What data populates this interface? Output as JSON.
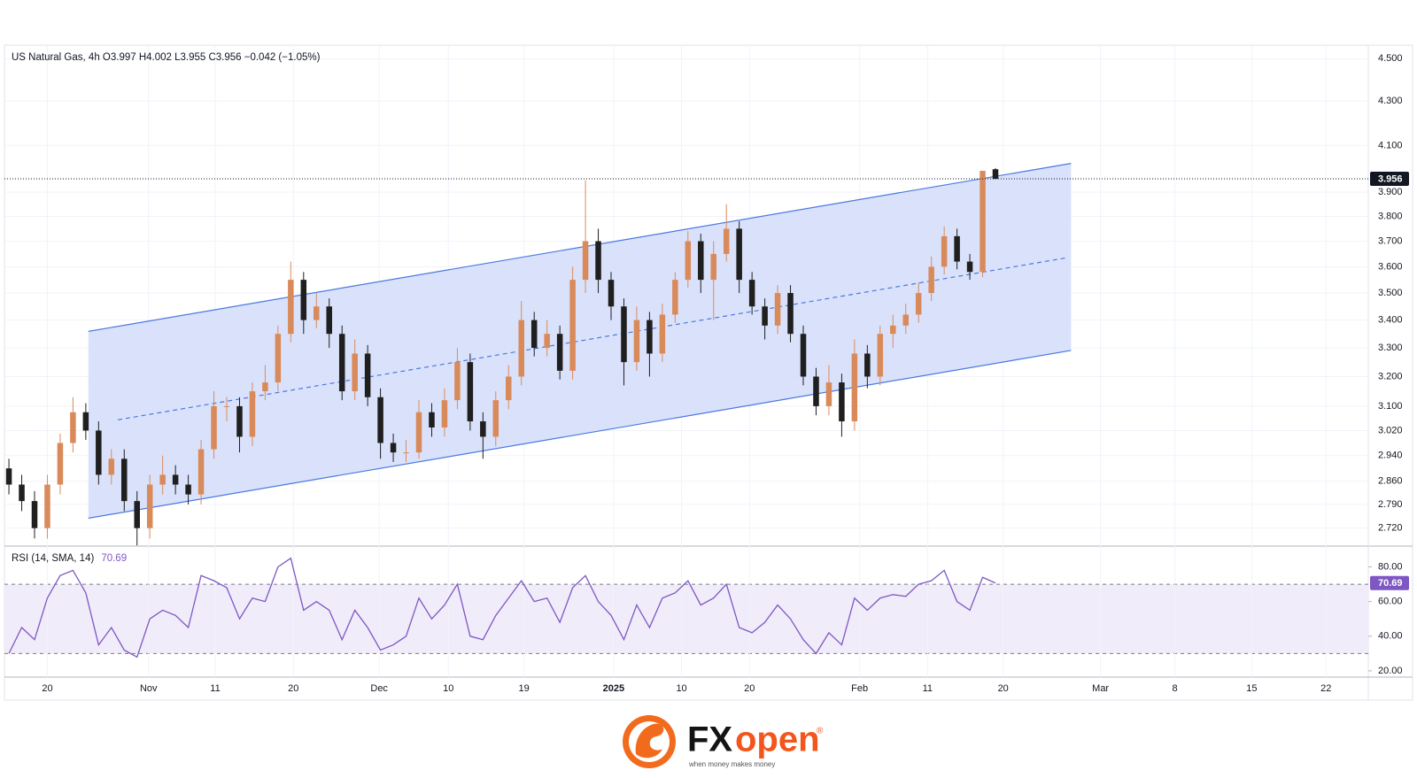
{
  "chart_data": [
    {
      "type": "candlestick",
      "title": "US Natural Gas, 4h  O3.997  H4.002  L3.955  C3.956  −0.042 (−1.05%)",
      "log_scale": true,
      "grid": true,
      "up_color": "#d98a5b",
      "down_color": "#1f1f1f",
      "xlim": [
        -0.35,
        106.1
      ],
      "ylim": [
        2.668,
        4.566
      ],
      "yticks": [
        {
          "value": 2.72,
          "label": "2.720"
        },
        {
          "value": 2.79,
          "label": "2.790"
        },
        {
          "value": 2.86,
          "label": "2.860"
        },
        {
          "value": 2.94,
          "label": "2.940"
        },
        {
          "value": 3.02,
          "label": "3.020"
        },
        {
          "value": 3.1,
          "label": "3.100"
        },
        {
          "value": 3.2,
          "label": "3.200"
        },
        {
          "value": 3.3,
          "label": "3.300"
        },
        {
          "value": 3.4,
          "label": "3.400"
        },
        {
          "value": 3.5,
          "label": "3.500"
        },
        {
          "value": 3.6,
          "label": "3.600"
        },
        {
          "value": 3.7,
          "label": "3.700"
        },
        {
          "value": 3.8,
          "label": "3.800"
        },
        {
          "value": 3.9,
          "label": "3.900"
        },
        {
          "value": 4.1,
          "label": "4.100"
        },
        {
          "value": 4.3,
          "label": "4.300"
        },
        {
          "value": 4.5,
          "label": "4.500"
        }
      ],
      "last_price": 3.956,
      "x": [
        0,
        1,
        2,
        3,
        4,
        5,
        6,
        7,
        8,
        9,
        10,
        11,
        12,
        13,
        14,
        15,
        16,
        17,
        18,
        19,
        20,
        21,
        22,
        23,
        24,
        25,
        26,
        27,
        28,
        29,
        30,
        31,
        32,
        33,
        34,
        35,
        36,
        37,
        38,
        39,
        40,
        41,
        42,
        43,
        44,
        45,
        46,
        47,
        48,
        49,
        50,
        51,
        52,
        53,
        54,
        55,
        56,
        57,
        58,
        59,
        60,
        61,
        62,
        63,
        64,
        65,
        66,
        67,
        68,
        69,
        70,
        71,
        72,
        73,
        74,
        75,
        76,
        77
      ],
      "open": [
        2.9,
        2.85,
        2.8,
        2.72,
        2.85,
        2.98,
        3.08,
        3.02,
        2.88,
        2.93,
        2.8,
        2.72,
        2.85,
        2.88,
        2.85,
        2.82,
        2.96,
        3.1,
        3.1,
        3.0,
        3.15,
        3.18,
        3.35,
        3.55,
        3.4,
        3.45,
        3.35,
        3.15,
        3.28,
        3.13,
        2.98,
        2.95,
        2.95,
        3.08,
        3.03,
        3.12,
        3.25,
        3.05,
        3.0,
        3.12,
        3.2,
        3.4,
        3.3,
        3.35,
        3.22,
        3.55,
        3.7,
        3.55,
        3.45,
        3.25,
        3.4,
        3.28,
        3.42,
        3.55,
        3.7,
        3.55,
        3.65,
        3.75,
        3.55,
        3.45,
        3.38,
        3.5,
        3.35,
        3.2,
        3.1,
        3.18,
        3.05,
        3.28,
        3.2,
        3.35,
        3.38,
        3.42,
        3.5,
        3.6,
        3.72,
        3.62,
        3.58,
        3.997
      ],
      "high": [
        2.93,
        2.88,
        2.83,
        2.88,
        3.01,
        3.13,
        3.11,
        3.05,
        2.96,
        2.96,
        2.83,
        2.88,
        2.94,
        2.91,
        2.88,
        2.99,
        3.15,
        3.13,
        3.13,
        3.18,
        3.24,
        3.38,
        3.62,
        3.58,
        3.5,
        3.48,
        3.38,
        3.33,
        3.31,
        3.16,
        3.01,
        2.99,
        3.12,
        3.11,
        3.16,
        3.3,
        3.28,
        3.08,
        3.15,
        3.24,
        3.47,
        3.43,
        3.4,
        3.38,
        3.6,
        3.95,
        3.75,
        3.58,
        3.48,
        3.45,
        3.43,
        3.46,
        3.58,
        3.74,
        3.73,
        3.7,
        3.85,
        3.78,
        3.58,
        3.48,
        3.53,
        3.53,
        3.38,
        3.23,
        3.24,
        3.21,
        3.33,
        3.31,
        3.38,
        3.42,
        3.46,
        3.54,
        3.64,
        3.76,
        3.75,
        3.65,
        3.99,
        4.002
      ],
      "low": [
        2.82,
        2.77,
        2.69,
        2.69,
        2.82,
        2.95,
        2.99,
        2.85,
        2.85,
        2.77,
        2.67,
        2.69,
        2.82,
        2.82,
        2.79,
        2.79,
        2.93,
        3.05,
        2.95,
        2.97,
        3.12,
        3.15,
        3.32,
        3.35,
        3.37,
        3.3,
        3.12,
        3.12,
        3.1,
        2.93,
        2.92,
        2.92,
        2.93,
        3.0,
        3.0,
        3.09,
        3.02,
        2.93,
        2.97,
        3.09,
        3.17,
        3.27,
        3.27,
        3.19,
        3.19,
        3.5,
        3.5,
        3.4,
        3.17,
        3.22,
        3.2,
        3.25,
        3.39,
        3.52,
        3.5,
        3.4,
        3.62,
        3.5,
        3.42,
        3.33,
        3.35,
        3.32,
        3.17,
        3.07,
        3.07,
        3.0,
        3.02,
        3.16,
        3.17,
        3.3,
        3.35,
        3.39,
        3.47,
        3.57,
        3.59,
        3.55,
        3.56,
        3.955
      ],
      "close": [
        2.85,
        2.8,
        2.72,
        2.85,
        2.98,
        3.08,
        3.02,
        2.88,
        2.93,
        2.8,
        2.72,
        2.85,
        2.88,
        2.85,
        2.82,
        2.96,
        3.1,
        3.1,
        3.0,
        3.15,
        3.18,
        3.35,
        3.55,
        3.4,
        3.45,
        3.35,
        3.15,
        3.28,
        3.13,
        2.98,
        2.95,
        2.95,
        3.08,
        3.03,
        3.12,
        3.25,
        3.05,
        3.0,
        3.12,
        3.2,
        3.4,
        3.3,
        3.35,
        3.22,
        3.55,
        3.7,
        3.55,
        3.45,
        3.25,
        3.4,
        3.28,
        3.42,
        3.55,
        3.7,
        3.55,
        3.65,
        3.75,
        3.55,
        3.45,
        3.38,
        3.5,
        3.35,
        3.2,
        3.1,
        3.18,
        3.05,
        3.28,
        3.2,
        3.35,
        3.38,
        3.42,
        3.5,
        3.6,
        3.72,
        3.62,
        3.58,
        3.99,
        3.956
      ],
      "channel": {
        "color": "#4a78e0",
        "fill": "#d3ddfa",
        "upper": {
          "x": [
            6.2,
            82.9
          ],
          "y": [
            3.359,
            4.022
          ]
        },
        "lower": {
          "x": [
            6.2,
            82.9
          ],
          "y": [
            2.749,
            3.291
          ]
        },
        "middle": {
          "x": [
            8.5,
            82.7
          ],
          "y": [
            3.055,
            3.636
          ]
        }
      }
    },
    {
      "type": "line",
      "title": "RSI (14, SMA, 14)",
      "last_value": 70.69,
      "color": "#7e57c2",
      "band_color": "#f1ecfa",
      "levels": [
        30,
        70
      ],
      "xlim": [
        -0.35,
        106.1
      ],
      "ylim": [
        16.4,
        92
      ],
      "yticks": [
        {
          "value": 20,
          "label": "20.00"
        },
        {
          "value": 40,
          "label": "40.00"
        },
        {
          "value": 60,
          "label": "60.00"
        },
        {
          "value": 80,
          "label": "80.00"
        }
      ],
      "xticks": [
        {
          "value": 3.0,
          "label": "20"
        },
        {
          "value": 10.9,
          "label": "Nov"
        },
        {
          "value": 16.1,
          "label": "11"
        },
        {
          "value": 22.2,
          "label": "20"
        },
        {
          "value": 28.9,
          "label": "Dec"
        },
        {
          "value": 34.3,
          "label": "10"
        },
        {
          "value": 40.2,
          "label": "19"
        },
        {
          "value": 47.2,
          "label": "2025"
        },
        {
          "value": 52.5,
          "label": "10"
        },
        {
          "value": 57.8,
          "label": "20"
        },
        {
          "value": 66.4,
          "label": "Feb"
        },
        {
          "value": 71.7,
          "label": "11"
        },
        {
          "value": 77.6,
          "label": "20"
        },
        {
          "value": 85.2,
          "label": "Mar"
        },
        {
          "value": 91.0,
          "label": "8"
        },
        {
          "value": 97.0,
          "label": "15"
        },
        {
          "value": 102.8,
          "label": "22"
        }
      ],
      "x": [
        0,
        1,
        2,
        3,
        4,
        5,
        6,
        7,
        8,
        9,
        10,
        11,
        12,
        13,
        14,
        15,
        16,
        17,
        18,
        19,
        20,
        21,
        22,
        23,
        24,
        25,
        26,
        27,
        28,
        29,
        30,
        31,
        32,
        33,
        34,
        35,
        36,
        37,
        38,
        39,
        40,
        41,
        42,
        43,
        44,
        45,
        46,
        47,
        48,
        49,
        50,
        51,
        52,
        53,
        54,
        55,
        56,
        57,
        58,
        59,
        60,
        61,
        62,
        63,
        64,
        65,
        66,
        67,
        68,
        69,
        70,
        71,
        72,
        73,
        74,
        75,
        76,
        77
      ],
      "values": [
        30,
        45,
        38,
        62,
        75,
        78,
        65,
        35,
        45,
        32,
        28,
        50,
        55,
        52,
        45,
        75,
        72,
        68,
        50,
        62,
        60,
        80,
        85,
        55,
        60,
        55,
        38,
        55,
        45,
        32,
        35,
        40,
        62,
        50,
        58,
        70,
        40,
        38,
        52,
        62,
        72,
        60,
        62,
        48,
        68,
        75,
        60,
        52,
        38,
        58,
        45,
        62,
        65,
        72,
        58,
        62,
        70,
        45,
        42,
        48,
        58,
        50,
        38,
        30,
        42,
        35,
        62,
        55,
        62,
        64,
        63,
        70,
        72,
        78,
        60,
        55,
        74,
        70.69
      ]
    }
  ],
  "logo": {
    "brand_prefix": "FX",
    "brand_suffix": "open",
    "registered": "®",
    "tagline": "when money makes money"
  }
}
